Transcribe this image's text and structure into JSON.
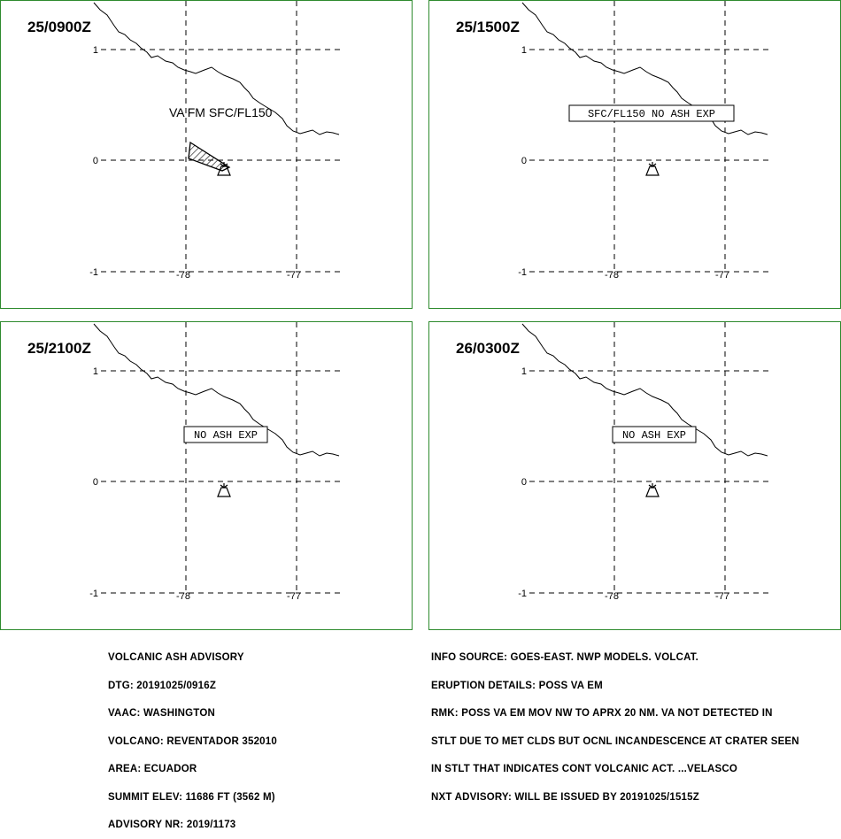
{
  "panels": [
    {
      "time": "25/0900Z",
      "label_type": "free",
      "label": "VA FM SFC/FL150",
      "has_ash_area": true
    },
    {
      "time": "25/1500Z",
      "label_type": "box",
      "label": "SFC/FL150 NO ASH EXP",
      "has_ash_area": false
    },
    {
      "time": "25/2100Z",
      "label_type": "box",
      "label": "NO ASH EXP",
      "has_ash_area": false
    },
    {
      "time": "26/0300Z",
      "label_type": "box",
      "label": "NO ASH EXP",
      "has_ash_area": false
    }
  ],
  "axes": {
    "lat_labels": [
      "1",
      "0",
      "-1"
    ],
    "lon_labels": [
      "-78",
      "-77"
    ]
  },
  "colors": {
    "panel_border": "#2e8b2e",
    "lines": "#000000"
  },
  "volcano_icon": "volcano-icon",
  "advisory_left": [
    "VOLCANIC ASH ADVISORY",
    "DTG: 20191025/0916Z",
    "VAAC: WASHINGTON",
    "VOLCANO: REVENTADOR 352010",
    "AREA: ECUADOR",
    "SUMMIT ELEV: 11686 FT (3562 M)",
    "ADVISORY NR: 2019/1173"
  ],
  "advisory_right": [
    "INFO SOURCE: GOES-EAST. NWP MODELS. VOLCAT.",
    "ERUPTION DETAILS: POSS VA EM",
    "RMK: POSS VA EM MOV NW TO APRX 20 NM. VA NOT DETECTED IN",
    "STLT DUE TO MET CLDS BUT OCNL INCANDESCENCE AT CRATER SEEN",
    "IN STLT THAT INDICATES CONT VOLCANIC ACT. ...VELASCO",
    "NXT ADVISORY: WILL BE ISSUED BY 20191025/1515Z"
  ]
}
